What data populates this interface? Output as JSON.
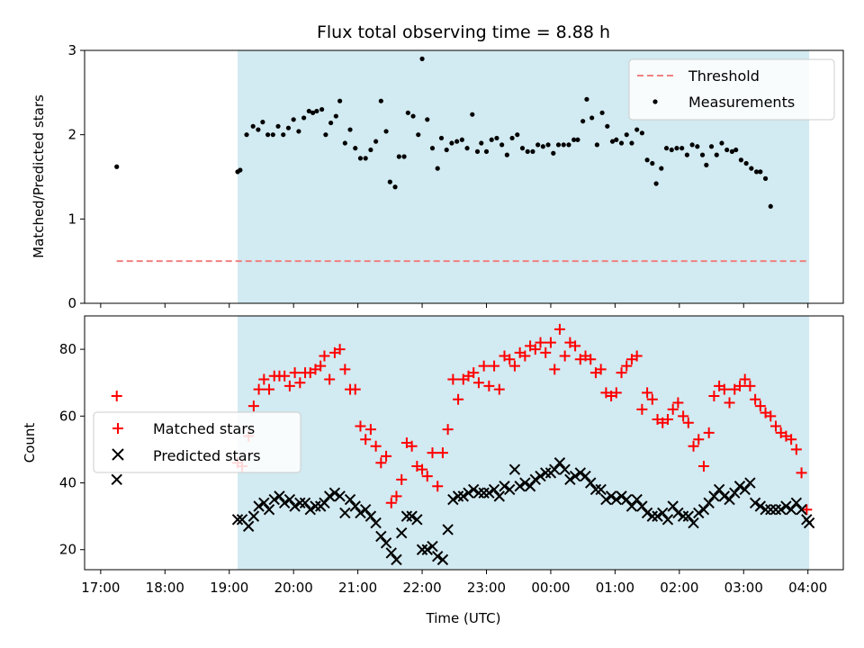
{
  "chart_data": {
    "title": "Flux total observing time = 8.88 h",
    "xlabel": "Time (UTC)",
    "x_unit": "hours since 17:00 UTC",
    "xlim": [
      -0.25,
      11.55
    ],
    "xticks": [
      0,
      1,
      2,
      3,
      4,
      5,
      6,
      7,
      8,
      9,
      10,
      11
    ],
    "xtick_labels": [
      "17:00",
      "18:00",
      "19:00",
      "20:00",
      "21:00",
      "22:00",
      "23:00",
      "00:00",
      "01:00",
      "02:00",
      "03:00",
      "04:00"
    ],
    "observing_window": [
      2.13,
      11.02
    ],
    "colors": {
      "shade": "#add8e6",
      "threshold": "#f08080",
      "measurements": "#000000",
      "matched": "#ff0000",
      "predicted": "#000000"
    },
    "top": {
      "type": "scatter",
      "ylabel": "Matched/Predicted stars",
      "ylim": [
        0,
        3
      ],
      "yticks": [
        0,
        1,
        2,
        3
      ],
      "legend": [
        "Threshold",
        "Measurements"
      ],
      "legend_position": "upper-right",
      "threshold": {
        "value": 0.5,
        "x_range": [
          0.25,
          11.02
        ]
      },
      "measurements": [
        [
          0.25,
          1.62
        ],
        [
          2.13,
          1.56
        ],
        [
          2.17,
          1.58
        ],
        [
          2.27,
          2.0
        ],
        [
          2.37,
          2.1
        ],
        [
          2.45,
          2.06
        ],
        [
          2.52,
          2.15
        ],
        [
          2.6,
          2.0
        ],
        [
          2.68,
          2.0
        ],
        [
          2.76,
          2.1
        ],
        [
          2.84,
          2.0
        ],
        [
          2.92,
          2.08
        ],
        [
          3.0,
          2.18
        ],
        [
          3.08,
          2.04
        ],
        [
          3.16,
          2.2
        ],
        [
          3.24,
          2.28
        ],
        [
          3.3,
          2.26
        ],
        [
          3.36,
          2.28
        ],
        [
          3.44,
          2.3
        ],
        [
          3.5,
          2.0
        ],
        [
          3.58,
          2.14
        ],
        [
          3.66,
          2.22
        ],
        [
          3.72,
          2.4
        ],
        [
          3.8,
          1.9
        ],
        [
          3.88,
          2.06
        ],
        [
          3.96,
          1.84
        ],
        [
          4.04,
          1.72
        ],
        [
          4.12,
          1.72
        ],
        [
          4.2,
          1.82
        ],
        [
          4.28,
          1.92
        ],
        [
          4.36,
          2.4
        ],
        [
          4.44,
          2.04
        ],
        [
          4.5,
          1.44
        ],
        [
          4.58,
          1.38
        ],
        [
          4.64,
          1.74
        ],
        [
          4.72,
          1.74
        ],
        [
          4.78,
          2.26
        ],
        [
          4.86,
          2.22
        ],
        [
          4.94,
          2.0
        ],
        [
          5.0,
          2.9
        ],
        [
          5.08,
          2.18
        ],
        [
          5.16,
          1.84
        ],
        [
          5.24,
          1.6
        ],
        [
          5.3,
          1.96
        ],
        [
          5.38,
          1.82
        ],
        [
          5.46,
          1.9
        ],
        [
          5.54,
          1.92
        ],
        [
          5.62,
          1.94
        ],
        [
          5.7,
          1.84
        ],
        [
          5.78,
          2.24
        ],
        [
          5.86,
          1.8
        ],
        [
          5.92,
          1.9
        ],
        [
          6.0,
          1.8
        ],
        [
          6.08,
          1.94
        ],
        [
          6.16,
          1.96
        ],
        [
          6.24,
          1.88
        ],
        [
          6.32,
          1.76
        ],
        [
          6.4,
          1.96
        ],
        [
          6.48,
          2.0
        ],
        [
          6.56,
          1.84
        ],
        [
          6.64,
          1.8
        ],
        [
          6.72,
          1.8
        ],
        [
          6.8,
          1.88
        ],
        [
          6.88,
          1.86
        ],
        [
          6.96,
          1.88
        ],
        [
          7.04,
          1.78
        ],
        [
          7.12,
          1.88
        ],
        [
          7.2,
          1.88
        ],
        [
          7.28,
          1.88
        ],
        [
          7.36,
          1.94
        ],
        [
          7.42,
          1.94
        ],
        [
          7.5,
          2.16
        ],
        [
          7.56,
          2.42
        ],
        [
          7.64,
          2.2
        ],
        [
          7.72,
          1.88
        ],
        [
          7.8,
          2.26
        ],
        [
          7.88,
          2.1
        ],
        [
          7.96,
          1.92
        ],
        [
          8.02,
          1.94
        ],
        [
          8.1,
          1.9
        ],
        [
          8.18,
          2.0
        ],
        [
          8.26,
          1.9
        ],
        [
          8.34,
          2.06
        ],
        [
          8.42,
          2.02
        ],
        [
          8.5,
          1.7
        ],
        [
          8.58,
          1.66
        ],
        [
          8.64,
          1.42
        ],
        [
          8.72,
          1.6
        ],
        [
          8.8,
          1.84
        ],
        [
          8.88,
          1.82
        ],
        [
          8.96,
          1.84
        ],
        [
          9.04,
          1.84
        ],
        [
          9.12,
          1.76
        ],
        [
          9.2,
          1.88
        ],
        [
          9.28,
          1.86
        ],
        [
          9.36,
          1.76
        ],
        [
          9.42,
          1.64
        ],
        [
          9.5,
          1.86
        ],
        [
          9.58,
          1.76
        ],
        [
          9.66,
          1.9
        ],
        [
          9.74,
          1.82
        ],
        [
          9.82,
          1.8
        ],
        [
          9.88,
          1.82
        ],
        [
          9.96,
          1.7
        ],
        [
          10.04,
          1.66
        ],
        [
          10.12,
          1.6
        ],
        [
          10.2,
          1.56
        ],
        [
          10.26,
          1.56
        ],
        [
          10.34,
          1.48
        ],
        [
          10.42,
          1.15
        ]
      ]
    },
    "bottom": {
      "type": "scatter",
      "ylabel": "Count",
      "ylim": [
        14,
        90
      ],
      "yticks": [
        20,
        40,
        60,
        80
      ],
      "legend": [
        "Matched stars",
        "Predicted stars"
      ],
      "legend_position": "center-left",
      "matched": [
        [
          0.25,
          66
        ],
        [
          2.13,
          46
        ],
        [
          2.2,
          45
        ],
        [
          2.3,
          54
        ],
        [
          2.38,
          63
        ],
        [
          2.46,
          68
        ],
        [
          2.54,
          71
        ],
        [
          2.62,
          68
        ],
        [
          2.7,
          72
        ],
        [
          2.78,
          72
        ],
        [
          2.86,
          72
        ],
        [
          2.94,
          69
        ],
        [
          3.02,
          73
        ],
        [
          3.1,
          70
        ],
        [
          3.18,
          73
        ],
        [
          3.26,
          73
        ],
        [
          3.34,
          74
        ],
        [
          3.42,
          75
        ],
        [
          3.48,
          78
        ],
        [
          3.56,
          71
        ],
        [
          3.64,
          79
        ],
        [
          3.72,
          80
        ],
        [
          3.8,
          74
        ],
        [
          3.88,
          68
        ],
        [
          3.96,
          68
        ],
        [
          4.04,
          57
        ],
        [
          4.12,
          53
        ],
        [
          4.2,
          56
        ],
        [
          4.28,
          51
        ],
        [
          4.36,
          46
        ],
        [
          4.44,
          48
        ],
        [
          4.52,
          34
        ],
        [
          4.6,
          36
        ],
        [
          4.68,
          41
        ],
        [
          4.76,
          52
        ],
        [
          4.84,
          51
        ],
        [
          4.92,
          45
        ],
        [
          5.0,
          44
        ],
        [
          5.08,
          42
        ],
        [
          5.16,
          49
        ],
        [
          5.24,
          39
        ],
        [
          5.32,
          49
        ],
        [
          5.4,
          56
        ],
        [
          5.48,
          71
        ],
        [
          5.56,
          65
        ],
        [
          5.64,
          71
        ],
        [
          5.72,
          72
        ],
        [
          5.8,
          73
        ],
        [
          5.88,
          70
        ],
        [
          5.96,
          75
        ],
        [
          6.04,
          69
        ],
        [
          6.12,
          75
        ],
        [
          6.2,
          68
        ],
        [
          6.28,
          78
        ],
        [
          6.36,
          77
        ],
        [
          6.44,
          75
        ],
        [
          6.52,
          79
        ],
        [
          6.6,
          78
        ],
        [
          6.68,
          81
        ],
        [
          6.76,
          80
        ],
        [
          6.84,
          82
        ],
        [
          6.92,
          79
        ],
        [
          7.0,
          82
        ],
        [
          7.06,
          74
        ],
        [
          7.14,
          86
        ],
        [
          7.22,
          78
        ],
        [
          7.3,
          82
        ],
        [
          7.38,
          81
        ],
        [
          7.46,
          77
        ],
        [
          7.54,
          78
        ],
        [
          7.62,
          77
        ],
        [
          7.7,
          73
        ],
        [
          7.78,
          74
        ],
        [
          7.86,
          67
        ],
        [
          7.94,
          66
        ],
        [
          8.02,
          67
        ],
        [
          8.1,
          73
        ],
        [
          8.18,
          75
        ],
        [
          8.26,
          77
        ],
        [
          8.34,
          78
        ],
        [
          8.42,
          62
        ],
        [
          8.5,
          67
        ],
        [
          8.58,
          65
        ],
        [
          8.66,
          59
        ],
        [
          8.74,
          58
        ],
        [
          8.82,
          59
        ],
        [
          8.9,
          62
        ],
        [
          8.98,
          64
        ],
        [
          9.06,
          60
        ],
        [
          9.14,
          58
        ],
        [
          9.22,
          51
        ],
        [
          9.3,
          53
        ],
        [
          9.38,
          45
        ],
        [
          9.46,
          55
        ],
        [
          9.54,
          66
        ],
        [
          9.62,
          69
        ],
        [
          9.7,
          68
        ],
        [
          9.78,
          64
        ],
        [
          9.86,
          68
        ],
        [
          9.94,
          69
        ],
        [
          10.02,
          71
        ],
        [
          10.1,
          69
        ],
        [
          10.18,
          65
        ],
        [
          10.26,
          63
        ],
        [
          10.34,
          61
        ],
        [
          10.42,
          60
        ],
        [
          10.5,
          57
        ],
        [
          10.58,
          55
        ],
        [
          10.66,
          54
        ],
        [
          10.74,
          53
        ],
        [
          10.82,
          50
        ],
        [
          10.9,
          43
        ],
        [
          10.98,
          32
        ]
      ],
      "predicted": [
        [
          0.25,
          41
        ],
        [
          2.13,
          29
        ],
        [
          2.2,
          29
        ],
        [
          2.3,
          27
        ],
        [
          2.38,
          30
        ],
        [
          2.46,
          33
        ],
        [
          2.54,
          34
        ],
        [
          2.62,
          32
        ],
        [
          2.7,
          35
        ],
        [
          2.78,
          36
        ],
        [
          2.86,
          34
        ],
        [
          2.94,
          35
        ],
        [
          3.02,
          33
        ],
        [
          3.1,
          34
        ],
        [
          3.18,
          34
        ],
        [
          3.26,
          32
        ],
        [
          3.34,
          33
        ],
        [
          3.42,
          33
        ],
        [
          3.48,
          34
        ],
        [
          3.56,
          36
        ],
        [
          3.64,
          37
        ],
        [
          3.72,
          36
        ],
        [
          3.8,
          31
        ],
        [
          3.88,
          35
        ],
        [
          3.96,
          33
        ],
        [
          4.04,
          31
        ],
        [
          4.12,
          32
        ],
        [
          4.2,
          30
        ],
        [
          4.28,
          28
        ],
        [
          4.36,
          24
        ],
        [
          4.44,
          22
        ],
        [
          4.52,
          19
        ],
        [
          4.6,
          17
        ],
        [
          4.68,
          25
        ],
        [
          4.76,
          30
        ],
        [
          4.84,
          30
        ],
        [
          4.92,
          29
        ],
        [
          5.0,
          20
        ],
        [
          5.08,
          20
        ],
        [
          5.16,
          21
        ],
        [
          5.24,
          18
        ],
        [
          5.32,
          17
        ],
        [
          5.4,
          26
        ],
        [
          5.48,
          35
        ],
        [
          5.56,
          36
        ],
        [
          5.64,
          36
        ],
        [
          5.72,
          37
        ],
        [
          5.8,
          38
        ],
        [
          5.88,
          37
        ],
        [
          5.96,
          37
        ],
        [
          6.04,
          37
        ],
        [
          6.12,
          38
        ],
        [
          6.2,
          36
        ],
        [
          6.28,
          39
        ],
        [
          6.36,
          38
        ],
        [
          6.44,
          44
        ],
        [
          6.52,
          39
        ],
        [
          6.6,
          40
        ],
        [
          6.68,
          39
        ],
        [
          6.76,
          41
        ],
        [
          6.84,
          42
        ],
        [
          6.92,
          43
        ],
        [
          7.0,
          43
        ],
        [
          7.06,
          44
        ],
        [
          7.14,
          46
        ],
        [
          7.22,
          44
        ],
        [
          7.3,
          41
        ],
        [
          7.38,
          42
        ],
        [
          7.46,
          43
        ],
        [
          7.54,
          42
        ],
        [
          7.62,
          40
        ],
        [
          7.7,
          38
        ],
        [
          7.78,
          38
        ],
        [
          7.86,
          35
        ],
        [
          7.94,
          36
        ],
        [
          8.02,
          35
        ],
        [
          8.1,
          36
        ],
        [
          8.18,
          35
        ],
        [
          8.26,
          33
        ],
        [
          8.34,
          35
        ],
        [
          8.42,
          33
        ],
        [
          8.5,
          31
        ],
        [
          8.58,
          30
        ],
        [
          8.66,
          30
        ],
        [
          8.74,
          31
        ],
        [
          8.82,
          29
        ],
        [
          8.9,
          33
        ],
        [
          8.98,
          31
        ],
        [
          9.06,
          30
        ],
        [
          9.14,
          30
        ],
        [
          9.22,
          28
        ],
        [
          9.3,
          31
        ],
        [
          9.38,
          32
        ],
        [
          9.46,
          34
        ],
        [
          9.54,
          36
        ],
        [
          9.62,
          38
        ],
        [
          9.7,
          36
        ],
        [
          9.78,
          35
        ],
        [
          9.86,
          37
        ],
        [
          9.94,
          39
        ],
        [
          10.02,
          38
        ],
        [
          10.1,
          40
        ],
        [
          10.18,
          34
        ],
        [
          10.26,
          33
        ],
        [
          10.34,
          32
        ],
        [
          10.42,
          32
        ],
        [
          10.5,
          32
        ],
        [
          10.58,
          32
        ],
        [
          10.66,
          33
        ],
        [
          10.74,
          32
        ],
        [
          10.82,
          34
        ],
        [
          10.9,
          32
        ],
        [
          10.98,
          29
        ],
        [
          11.02,
          28
        ]
      ]
    }
  }
}
